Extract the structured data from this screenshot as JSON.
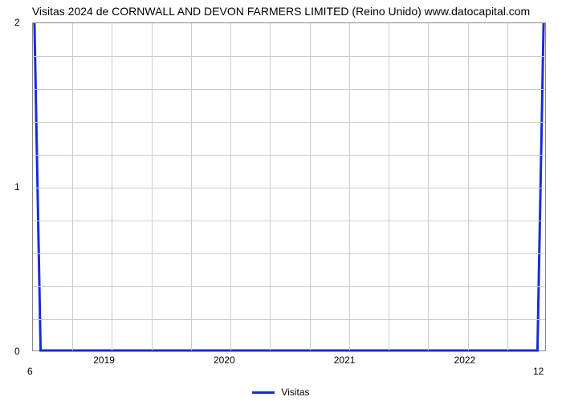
{
  "chart": {
    "type": "line",
    "title": "Visitas 2024 de CORNWALL AND DEVON FARMERS LIMITED (Reino Unido) www.datocapital.com",
    "title_fontsize": 14,
    "background_color": "#ffffff",
    "plot_border_color": "#888888",
    "grid_color": "#cccccc",
    "series_color": "#172cd8",
    "line_width": 3,
    "y": {
      "lim": [
        0,
        2
      ],
      "ticks": [
        0,
        1,
        2
      ],
      "minor_count": 4
    },
    "x": {
      "ticks": [
        "2019",
        "2020",
        "2021",
        "2022"
      ],
      "secondary_ticks": {
        "left": "6",
        "right": "12"
      },
      "vgrid_count": 13
    },
    "series": {
      "name": "Visitas",
      "points": [
        {
          "x_frac": 0.003,
          "y": 2.0
        },
        {
          "x_frac": 0.015,
          "y": 0.0
        },
        {
          "x_frac": 0.985,
          "y": 0.0
        },
        {
          "x_frac": 0.997,
          "y": 2.0
        }
      ]
    },
    "legend": {
      "label": "Visitas"
    },
    "label_fontsize": 12
  }
}
